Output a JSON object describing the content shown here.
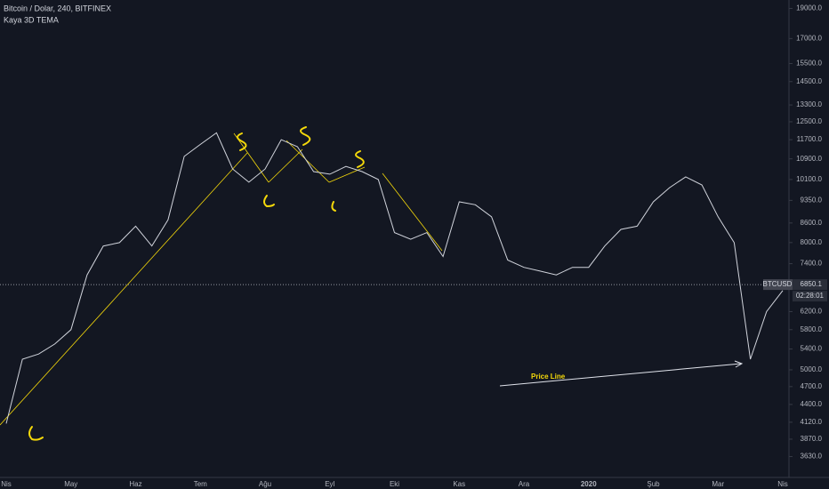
{
  "chart_data": {
    "type": "line",
    "title": "Bitcoin / Dolar, 240, BITFINEX",
    "subtitle": "Kaya 3D TEMA",
    "categories": [
      "Nis",
      null,
      null,
      null,
      "May",
      null,
      null,
      null,
      "Haz",
      null,
      null,
      null,
      "Tem",
      null,
      null,
      null,
      "Ağu",
      null,
      null,
      null,
      "Eyl",
      null,
      null,
      null,
      "Eki",
      null,
      null,
      null,
      "Kas",
      null,
      null,
      null,
      "Ara",
      null,
      null,
      null,
      "2020",
      null,
      null,
      null,
      "Şub",
      null,
      null,
      null,
      "Mar",
      null,
      null,
      null,
      "Nis"
    ],
    "series": [
      {
        "name": "BTCUSD",
        "color": "#d1d4dc",
        "values": [
          4100,
          5200,
          5300,
          5500,
          5800,
          7100,
          7900,
          8000,
          8500,
          7900,
          8700,
          11000,
          11500,
          12000,
          10500,
          10000,
          10500,
          11700,
          11400,
          10400,
          10300,
          10600,
          10400,
          10100,
          8300,
          8100,
          8300,
          7600,
          9300,
          9200,
          8800,
          7500,
          7300,
          7200,
          7100,
          7300,
          7300,
          7900,
          8400,
          8500,
          9300,
          9800,
          10200,
          9900,
          8800,
          8000,
          5200,
          6200,
          6700
        ]
      }
    ],
    "ylim": [
      3360,
      19600
    ],
    "log_scale": true,
    "grid": false,
    "yticks": [
      {
        "value": 19000,
        "label": "19000.0"
      },
      {
        "value": 17000,
        "label": "17000.0"
      },
      {
        "value": 15500,
        "label": "15500.0"
      },
      {
        "value": 14500,
        "label": "14500.0"
      },
      {
        "value": 13300,
        "label": "13300.0"
      },
      {
        "value": 12500,
        "label": "12500.0"
      },
      {
        "value": 11700,
        "label": "11700.0"
      },
      {
        "value": 10900,
        "label": "10900.0"
      },
      {
        "value": 10100,
        "label": "10100.0"
      },
      {
        "value": 9350,
        "label": "9350.0"
      },
      {
        "value": 8600,
        "label": "8600.0"
      },
      {
        "value": 8000,
        "label": "8000.0"
      },
      {
        "value": 7400,
        "label": "7400.0"
      },
      {
        "value": 6200,
        "label": "6200.0"
      },
      {
        "value": 5800,
        "label": "5800.0"
      },
      {
        "value": 5400,
        "label": "5400.0"
      },
      {
        "value": 5000,
        "label": "5000.0"
      },
      {
        "value": 4700,
        "label": "4700.0"
      },
      {
        "value": 4400,
        "label": "4400.0"
      },
      {
        "value": 4120,
        "label": "4120.0"
      },
      {
        "value": 3870,
        "label": "3870.0"
      },
      {
        "value": 3630,
        "label": "3630.0"
      }
    ],
    "last_price": 6850.1,
    "countdown": "02:28:01",
    "annotation": "Price Line"
  }
}
